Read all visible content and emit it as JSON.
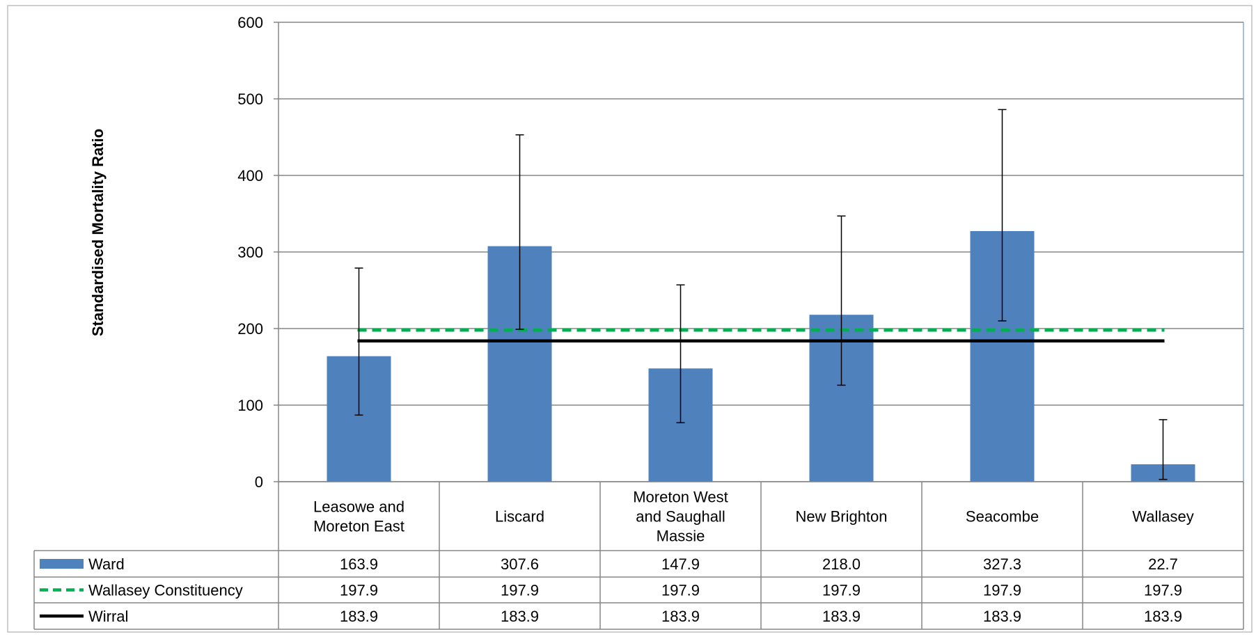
{
  "chart_data": {
    "type": "bar",
    "ylabel": "Standardised Mortality Ratio",
    "ylim": [
      0,
      600
    ],
    "yticks": [
      0,
      100,
      200,
      300,
      400,
      500,
      600
    ],
    "grid": true,
    "legend": "data-table",
    "categories": [
      [
        "Leasowe and",
        "Moreton East"
      ],
      [
        "Liscard"
      ],
      [
        "Moreton West",
        "and Saughall",
        "Massie"
      ],
      [
        "New Brighton"
      ],
      [
        "Seacombe"
      ],
      [
        "Wallasey"
      ]
    ],
    "series": [
      {
        "name": "Ward",
        "kind": "bar",
        "color": "#4f81bd",
        "values": [
          163.9,
          307.6,
          147.9,
          218.0,
          327.3,
          22.7
        ],
        "labels": [
          "163.9",
          "307.6",
          "147.9",
          "218.0",
          "327.3",
          "22.7"
        ],
        "error_low": [
          87,
          199,
          77,
          126,
          210,
          3
        ],
        "error_high": [
          279,
          453,
          257,
          347,
          486,
          81
        ]
      },
      {
        "name": "Wallasey Constituency",
        "kind": "line",
        "style": "dashed",
        "color": "#00b050",
        "values": [
          197.9,
          197.9,
          197.9,
          197.9,
          197.9,
          197.9
        ],
        "labels": [
          "197.9",
          "197.9",
          "197.9",
          "197.9",
          "197.9",
          "197.9"
        ]
      },
      {
        "name": "Wirral",
        "kind": "line",
        "style": "solid",
        "color": "#000000",
        "values": [
          183.9,
          183.9,
          183.9,
          183.9,
          183.9,
          183.9
        ],
        "labels": [
          "183.9",
          "183.9",
          "183.9",
          "183.9",
          "183.9",
          "183.9"
        ]
      }
    ]
  }
}
